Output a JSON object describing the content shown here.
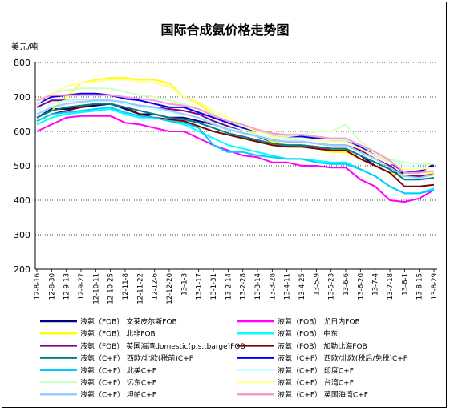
{
  "chart_data": {
    "type": "line",
    "title": "国际合成氨价格走势图",
    "ylabel": "美元/吨",
    "xlabel": "",
    "ylim": [
      200,
      800
    ],
    "yticks": [
      200,
      300,
      400,
      500,
      600,
      700,
      800
    ],
    "grid": "horizontal dotted",
    "legend_position": "bottom",
    "x": [
      "12-8-16",
      "12-8-30",
      "12-9-13",
      "12-9-27",
      "12-10-11",
      "12-10-25",
      "12-11-8",
      "12-11-22",
      "12-12-6",
      "12-12-20",
      "13-1-3",
      "13-1-17",
      "13-1-31",
      "13-2-14",
      "13-2-28",
      "13-3-14",
      "13-3-28",
      "13-4-11",
      "13-4-25",
      "13-5-9",
      "13-5-23",
      "13-6-6",
      "13-6-20",
      "13-7-4",
      "13-7-18",
      "13-8-1",
      "13-8-15",
      "13-8-29"
    ],
    "series": [
      {
        "name": "液氨（FOB） 文莱皮尔斯FOB",
        "color": "#000080",
        "values": [
          640,
          665,
          665,
          670,
          675,
          680,
          665,
          650,
          650,
          640,
          640,
          630,
          620,
          610,
          600,
          585,
          570,
          560,
          560,
          555,
          550,
          550,
          530,
          500,
          480,
          480,
          480,
          505
        ]
      },
      {
        "name": "液氨（FOB） 尤日内FOB",
        "color": "#ff00ff",
        "values": [
          600,
          620,
          640,
          645,
          645,
          645,
          625,
          620,
          610,
          600,
          600,
          580,
          560,
          545,
          530,
          525,
          510,
          510,
          500,
          500,
          495,
          495,
          460,
          440,
          400,
          395,
          405,
          430
        ]
      },
      {
        "name": "液氨（FOB） 北非FOB",
        "color": "#ffff00",
        "values": [
          640,
          660,
          700,
          740,
          750,
          755,
          755,
          750,
          750,
          740,
          700,
          680,
          650,
          630,
          610,
          590,
          570,
          560,
          560,
          550,
          540,
          540,
          520,
          500,
          480,
          470,
          470,
          480
        ]
      },
      {
        "name": "液氨（FOB） 中东",
        "color": "#00ffff",
        "values": [
          620,
          640,
          650,
          655,
          660,
          665,
          650,
          640,
          640,
          630,
          620,
          600,
          580,
          560,
          550,
          540,
          530,
          520,
          520,
          515,
          510,
          510,
          490,
          470,
          440,
          420,
          420,
          435
        ]
      },
      {
        "name": "液氨（FOB） 英国海湾domestic(p.s.tbarge)FOB",
        "color": "#800080",
        "values": [
          670,
          690,
          690,
          690,
          690,
          690,
          680,
          675,
          670,
          665,
          660,
          650,
          630,
          615,
          600,
          590,
          575,
          570,
          570,
          565,
          560,
          560,
          545,
          520,
          500,
          470,
          470,
          475
        ]
      },
      {
        "name": "液氨（FOB） 加勒比海FOB",
        "color": "#800000",
        "values": [
          630,
          650,
          660,
          670,
          680,
          680,
          670,
          650,
          640,
          635,
          630,
          615,
          600,
          590,
          580,
          570,
          560,
          555,
          555,
          550,
          545,
          545,
          520,
          500,
          480,
          440,
          440,
          445
        ]
      },
      {
        "name": "液氨（C+F） 西欧/北欧(税前)C+F",
        "color": "#008080",
        "values": [
          640,
          660,
          670,
          675,
          680,
          680,
          670,
          660,
          650,
          640,
          635,
          625,
          610,
          595,
          585,
          575,
          565,
          560,
          560,
          555,
          550,
          550,
          530,
          510,
          490,
          460,
          460,
          465
        ]
      },
      {
        "name": "液氨（C+F） 西欧/北欧(税后/免税)C+F",
        "color": "#0000ff",
        "values": [
          680,
          700,
          705,
          710,
          710,
          705,
          695,
          690,
          680,
          670,
          670,
          655,
          640,
          625,
          610,
          600,
          590,
          585,
          585,
          580,
          575,
          575,
          555,
          530,
          510,
          480,
          485,
          500
        ]
      },
      {
        "name": "液氨（C+F） 北美C+F",
        "color": "#00ccff",
        "values": [
          630,
          650,
          655,
          660,
          665,
          670,
          655,
          645,
          640,
          630,
          625,
          610,
          560,
          540,
          540,
          530,
          525,
          520,
          520,
          510,
          505,
          505,
          490,
          470,
          440,
          420,
          420,
          430
        ]
      },
      {
        "name": "液氨（C+F） 印度C+F",
        "color": "#ccffff",
        "values": [
          660,
          680,
          690,
          690,
          690,
          690,
          680,
          670,
          665,
          655,
          650,
          640,
          625,
          610,
          600,
          590,
          580,
          575,
          575,
          575,
          575,
          575,
          560,
          540,
          520,
          500,
          495,
          495
        ]
      },
      {
        "name": "液氨（C+F） 远东C+F",
        "color": "#ccffcc",
        "values": [
          680,
          710,
          720,
          725,
          725,
          725,
          715,
          705,
          700,
          690,
          680,
          665,
          650,
          630,
          615,
          600,
          590,
          585,
          590,
          600,
          600,
          620,
          570,
          540,
          520,
          510,
          505,
          505
        ]
      },
      {
        "name": "液氨（C+F） 台湾C+F",
        "color": "#ffff99",
        "values": [
          690,
          710,
          730,
          740,
          745,
          750,
          750,
          745,
          740,
          730,
          700,
          685,
          660,
          640,
          620,
          600,
          585,
          580,
          580,
          575,
          570,
          570,
          550,
          530,
          510,
          490,
          490,
          495
        ]
      },
      {
        "name": "液氨（C+F） 坦帕C+F",
        "color": "#99ccff",
        "values": [
          650,
          670,
          680,
          685,
          690,
          690,
          685,
          675,
          670,
          660,
          650,
          640,
          620,
          605,
          595,
          585,
          575,
          570,
          570,
          565,
          560,
          560,
          540,
          520,
          495,
          470,
          465,
          475
        ]
      },
      {
        "name": "液氨（C+F） 英国海湾C+F",
        "color": "#ff99cc",
        "values": [
          690,
          705,
          705,
          705,
          705,
          705,
          700,
          695,
          690,
          680,
          675,
          665,
          645,
          630,
          620,
          605,
          595,
          590,
          590,
          585,
          580,
          580,
          560,
          540,
          515,
          480,
          480,
          485
        ]
      }
    ]
  }
}
